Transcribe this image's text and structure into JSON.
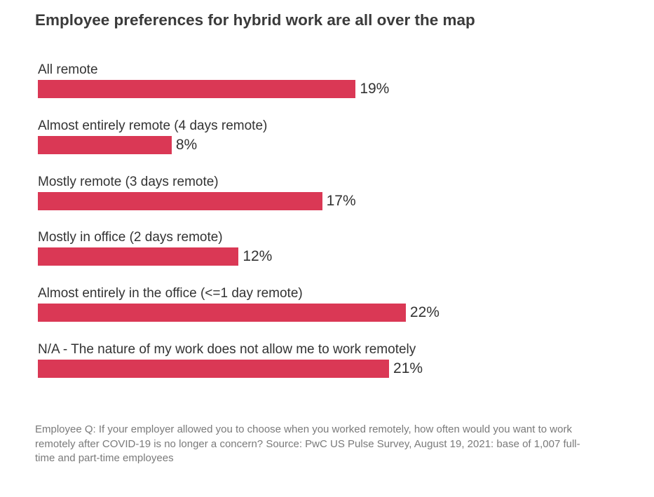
{
  "chart_data": {
    "type": "bar",
    "orientation": "horizontal",
    "title": "Employee preferences for hybrid work are all over the map",
    "categories": [
      "All remote",
      "Almost entirely remote (4 days remote)",
      "Mostly remote (3 days remote)",
      "Mostly in office (2 days remote)",
      "Almost entirely in the office (<=1 day remote)",
      "N/A - The nature of my work does not allow me to work remotely"
    ],
    "values": [
      19,
      8,
      17,
      12,
      22,
      21
    ],
    "value_labels": [
      "19%",
      "8%",
      "17%",
      "12%",
      "22%",
      "21%"
    ],
    "unit": "%",
    "xlim": [
      0,
      40
    ],
    "grid": false,
    "bar_color": "#DA3855",
    "note": "Employee Q: If your employer allowed you to choose when you worked remotely, how often would you want to work remotely after COVID-19 is no longer a concern? Source: PwC US Pulse Survey, August 19, 2021: base of 1,007 full-time and part-time employees"
  }
}
